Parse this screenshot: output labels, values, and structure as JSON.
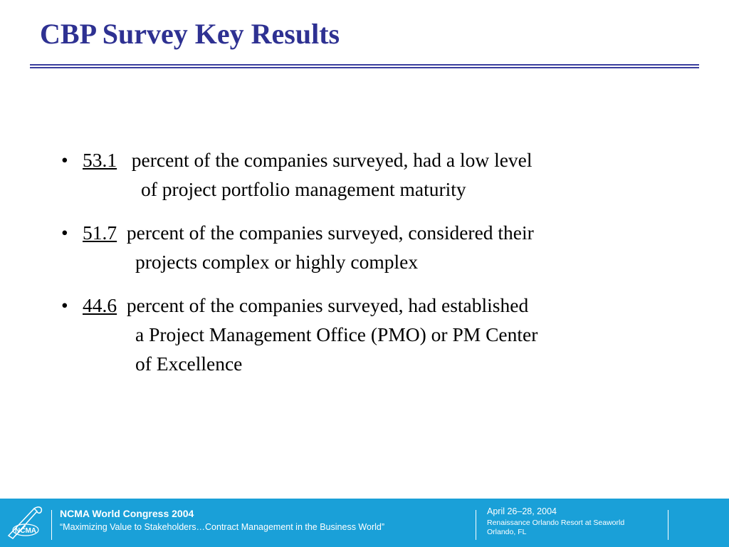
{
  "slide": {
    "title": "CBP Survey Key Results"
  },
  "bullets": [
    {
      "glyph": "•",
      "number": "53.1",
      "lines": [
        "percent of the companies surveyed, had a low level",
        "of project portfolio management maturity"
      ]
    },
    {
      "glyph": "•",
      "number": "51.7",
      "lines": [
        "percent of the companies surveyed, considered their",
        "projects complex or highly complex"
      ]
    },
    {
      "glyph": "•",
      "number": "44.6",
      "lines": [
        "percent of the companies surveyed, had established",
        "a Project Management Office (PMO) or PM Center",
        "of Excellence"
      ]
    }
  ],
  "footer": {
    "logo_icon": "ncma-logo-icon",
    "logo_text": "NCMA",
    "event_name": "NCMA World Congress 2004",
    "tagline": "“Maximizing Value to Stakeholders…Contract Management in the Business World”",
    "date": "April 26–28, 2004",
    "venue_line1": "Renaissance Orlando Resort at Seaworld",
    "venue_line2": "Orlando, FL"
  },
  "colors": {
    "title": "#2e3192",
    "footer_bg": "#1aa0d8",
    "text": "#000000"
  }
}
